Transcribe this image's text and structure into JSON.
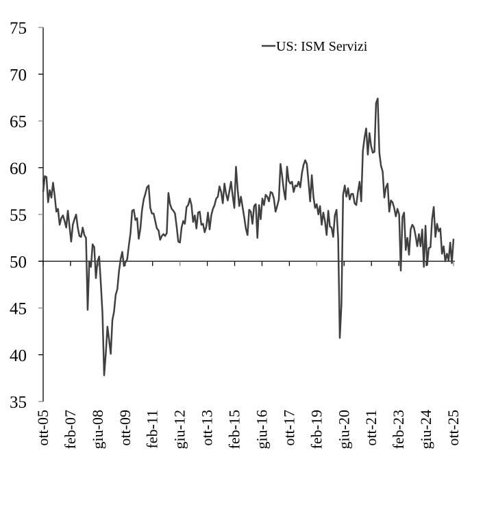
{
  "chart_data": {
    "type": "line",
    "title": "",
    "xlabel": "",
    "ylabel": "",
    "ylim": [
      35,
      75
    ],
    "yticks": [
      "35",
      "40",
      "45",
      "50",
      "55",
      "60",
      "65",
      "70",
      "75"
    ],
    "reference_line": 50,
    "grid": false,
    "legend_position": "top-right",
    "x_start": "ott-05",
    "x_end": "ott-25",
    "x_frequency": "monthly",
    "xtick_labels": [
      "ott-05",
      "feb-07",
      "giu-08",
      "ott-09",
      "feb-11",
      "giu-12",
      "ott-13",
      "feb-15",
      "giu-16",
      "ott-17",
      "feb-19",
      "giu-20",
      "ott-21",
      "feb-23",
      "giu-24",
      "ott-25"
    ],
    "series": [
      {
        "name": "US: ISM Servizi",
        "color": "#404040",
        "values": [
          57.4,
          59.1,
          59.0,
          56.3,
          57.6,
          56.8,
          58.4,
          57.0,
          55.3,
          55.6,
          53.9,
          54.6,
          54.9,
          54.3,
          53.6,
          55.4,
          53.7,
          52.1,
          53.9,
          54.5,
          55.0,
          53.6,
          52.7,
          52.6,
          53.6,
          52.8,
          52.5,
          44.8,
          50.0,
          49.4,
          51.8,
          51.5,
          48.2,
          50.0,
          50.5,
          47.6,
          44.4,
          37.8,
          40.1,
          43.0,
          41.6,
          40.1,
          43.7,
          44.6,
          46.4,
          47.0,
          48.9,
          50.2,
          51.0,
          49.5,
          49.9,
          50.2,
          51.7,
          53.0,
          55.4,
          55.5,
          54.4,
          54.6,
          52.4,
          53.5,
          55.5,
          56.6,
          57.2,
          57.9,
          58.1,
          55.7,
          55.1,
          55.1,
          54.3,
          53.5,
          53.3,
          52.3,
          52.7,
          52.9,
          52.7,
          53.0,
          57.3,
          56.1,
          55.6,
          55.4,
          55.1,
          53.7,
          52.1,
          52.0,
          53.6,
          54.3,
          54.0,
          55.8,
          56.0,
          56.7,
          56.0,
          54.2,
          54.9,
          53.5,
          55.2,
          55.3,
          53.9,
          54.0,
          53.1,
          53.7,
          55.2,
          53.4,
          54.9,
          55.6,
          56.0,
          56.7,
          56.9,
          58.0,
          57.4,
          56.2,
          58.3,
          57.2,
          56.5,
          57.5,
          58.5,
          57.0,
          55.7,
          60.1,
          57.7,
          55.9,
          56.9,
          55.8,
          54.7,
          53.5,
          52.8,
          55.5,
          55.3,
          54.0,
          55.9,
          56.1,
          52.5,
          56.0,
          54.5,
          56.7,
          56.0,
          57.1,
          56.9,
          56.4,
          57.4,
          57.3,
          56.7,
          55.3,
          55.9,
          56.6,
          60.4,
          59.1,
          57.6,
          56.6,
          60.1,
          58.6,
          58.3,
          58.5,
          57.4,
          58.1,
          58.0,
          58.5,
          57.9,
          59.4,
          60.3,
          60.8,
          60.4,
          58.5,
          56.4,
          59.2,
          56.9,
          55.7,
          56.1,
          55.0,
          55.9,
          53.9,
          55.2,
          54.3,
          52.8,
          55.4,
          53.7,
          53.6,
          52.6,
          54.9,
          55.5,
          52.5,
          41.8,
          45.4,
          57.1,
          58.1,
          56.9,
          57.8,
          56.6,
          57.2,
          57.2,
          56.2,
          56.0,
          57.4,
          58.5,
          56.4,
          61.8,
          63.2,
          64.2,
          61.4,
          63.7,
          62.3,
          61.6,
          61.7,
          66.9,
          67.4,
          61.6,
          60.2,
          59.6,
          56.8,
          57.9,
          58.3,
          55.3,
          56.5,
          56.3,
          55.7,
          54.8,
          55.6,
          55.0,
          49.0,
          54.7,
          55.2,
          51.2,
          52.5,
          50.7,
          53.4,
          53.9,
          53.6,
          52.7,
          51.6,
          52.9,
          51.6,
          53.4,
          49.4,
          53.8,
          49.6,
          51.4,
          51.5,
          54.5,
          55.8,
          52.6,
          54.0,
          53.2,
          53.5,
          50.8,
          51.6,
          50.0,
          50.8,
          50.1,
          52.0,
          49.8,
          52.4
        ]
      }
    ]
  }
}
